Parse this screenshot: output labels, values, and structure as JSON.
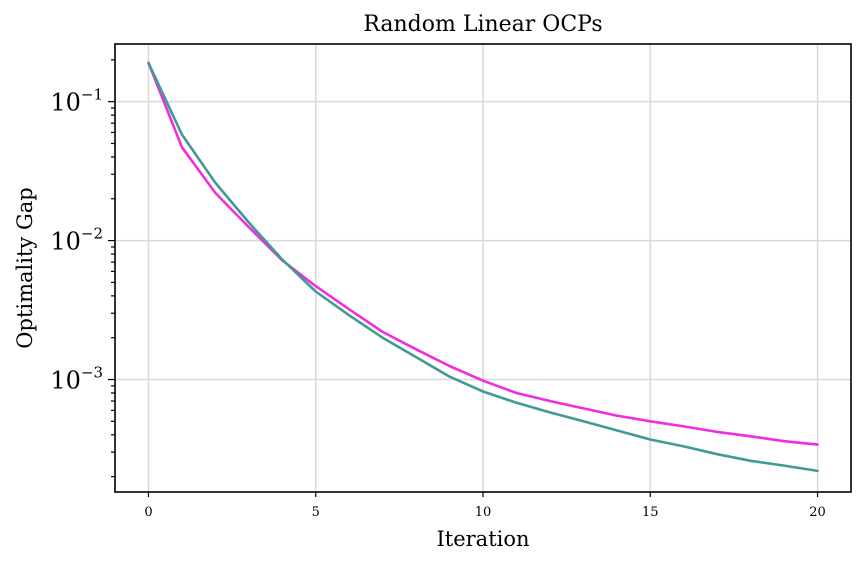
{
  "chart_data": {
    "type": "line",
    "title": "Random Linear OCPs",
    "xlabel": "Iteration",
    "ylabel": "Optimality Gap",
    "yscale": "log",
    "xlim": [
      -1,
      21
    ],
    "ylim": [
      0.000155,
      0.26
    ],
    "grid": true,
    "x_ticks": [
      0,
      5,
      10,
      15,
      20
    ],
    "x_tick_labels": [
      "0",
      "5",
      "10",
      "15",
      "20"
    ],
    "y_ticks": [
      0.1,
      0.01,
      0.001
    ],
    "y_tick_labels": [
      {
        "base": "10",
        "exp": "−1"
      },
      {
        "base": "10",
        "exp": "−2"
      },
      {
        "base": "10",
        "exp": "−3"
      }
    ],
    "x": [
      0,
      1,
      2,
      3,
      4,
      5,
      6,
      7,
      8,
      9,
      10,
      11,
      12,
      13,
      14,
      15,
      16,
      17,
      18,
      19,
      20
    ],
    "series": [
      {
        "color": "#ee2ee0",
        "values": [
          0.19,
          0.047,
          0.022,
          0.0125,
          0.0072,
          0.0047,
          0.0032,
          0.0022,
          0.00165,
          0.00125,
          0.00098,
          0.0008,
          0.0007,
          0.00062,
          0.00055,
          0.0005,
          0.00046,
          0.00042,
          0.00039,
          0.00036,
          0.00034
        ]
      },
      {
        "color": "#429a95",
        "values": [
          0.19,
          0.058,
          0.026,
          0.0135,
          0.0073,
          0.0043,
          0.0029,
          0.002,
          0.00145,
          0.00105,
          0.00082,
          0.00068,
          0.00058,
          0.0005,
          0.00043,
          0.00037,
          0.00033,
          0.00029,
          0.00026,
          0.00024,
          0.00022
        ]
      }
    ]
  }
}
